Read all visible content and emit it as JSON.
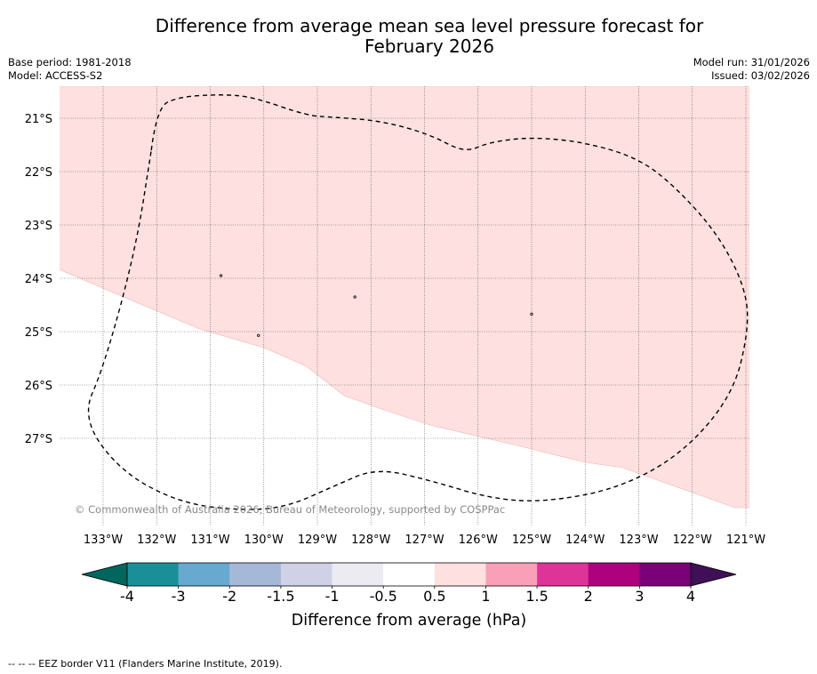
{
  "header": {
    "title_line1": "Difference from average mean sea level pressure forecast for",
    "title_line2": "February 2026",
    "base_period": "Base period: 1981-2018",
    "model": "Model: ACCESS-S2",
    "model_run": "Model run: 31/01/2026",
    "issued": "Issued: 03/02/2026"
  },
  "chart_data": {
    "type": "heatmap",
    "title": "Difference from average mean sea level pressure forecast for February 2026",
    "map_extent": {
      "lon_min": -133.9,
      "lon_max": -120.9,
      "lat_min": -28.3,
      "lat_max": -20.4
    },
    "x_ticks": [
      {
        "lon": -133,
        "label": "133°W"
      },
      {
        "lon": -132,
        "label": "132°W"
      },
      {
        "lon": -131,
        "label": "131°W"
      },
      {
        "lon": -130,
        "label": "130°W"
      },
      {
        "lon": -129,
        "label": "129°W"
      },
      {
        "lon": -128,
        "label": "128°W"
      },
      {
        "lon": -127,
        "label": "127°W"
      },
      {
        "lon": -126,
        "label": "126°W"
      },
      {
        "lon": -125,
        "label": "125°W"
      },
      {
        "lon": -124,
        "label": "124°W"
      },
      {
        "lon": -123,
        "label": "123°W"
      },
      {
        "lon": -122,
        "label": "122°W"
      },
      {
        "lon": -121,
        "label": "121°W"
      }
    ],
    "y_ticks": [
      {
        "lat": -21,
        "label": "21°S"
      },
      {
        "lat": -22,
        "label": "22°S"
      },
      {
        "lat": -23,
        "label": "23°S"
      },
      {
        "lat": -24,
        "label": "24°S"
      },
      {
        "lat": -25,
        "label": "25°S"
      },
      {
        "lat": -26,
        "label": "26°S"
      },
      {
        "lat": -27,
        "label": "27°S"
      }
    ],
    "filled_regions": [
      {
        "bin": "0.5 to 1 hPa",
        "color": "#fde0df",
        "boundary": [
          [
            -133.9,
            -20.4
          ],
          [
            -120.9,
            -20.4
          ],
          [
            -120.9,
            -28.3
          ],
          [
            -121.2,
            -28.3
          ],
          [
            -123.3,
            -27.55
          ],
          [
            -124.0,
            -27.45
          ],
          [
            -125.2,
            -27.15
          ],
          [
            -126.9,
            -26.75
          ],
          [
            -127.8,
            -26.45
          ],
          [
            -128.5,
            -26.2
          ],
          [
            -129.2,
            -25.65
          ],
          [
            -130.0,
            -25.3
          ],
          [
            -131.2,
            -24.95
          ],
          [
            -132.5,
            -24.4
          ],
          [
            -133.9,
            -23.8
          ]
        ]
      },
      {
        "bin": "-0.5 to 0.5 hPa",
        "color": "#ffffff",
        "boundary": "remainder of map (lower-left)"
      }
    ],
    "eez_border": {
      "style": "dashed",
      "points": [
        [
          -132.1,
          -21.6
        ],
        [
          -132.0,
          -20.8
        ],
        [
          -131.6,
          -20.6
        ],
        [
          -130.8,
          -20.55
        ],
        [
          -130.2,
          -20.6
        ],
        [
          -129.2,
          -20.95
        ],
        [
          -128.7,
          -20.98
        ],
        [
          -127.8,
          -21.05
        ],
        [
          -126.9,
          -21.3
        ],
        [
          -126.25,
          -21.65
        ],
        [
          -125.8,
          -21.45
        ],
        [
          -125.0,
          -21.35
        ],
        [
          -124.0,
          -21.45
        ],
        [
          -123.0,
          -21.75
        ],
        [
          -122.3,
          -22.3
        ],
        [
          -121.5,
          -23.2
        ],
        [
          -121.0,
          -24.2
        ],
        [
          -120.95,
          -25.0
        ],
        [
          -121.25,
          -26.2
        ],
        [
          -122.2,
          -27.3
        ],
        [
          -123.4,
          -27.95
        ],
        [
          -124.8,
          -28.2
        ],
        [
          -125.8,
          -28.12
        ],
        [
          -126.85,
          -27.8
        ],
        [
          -127.9,
          -27.55
        ],
        [
          -128.7,
          -27.9
        ],
        [
          -129.6,
          -28.3
        ],
        [
          -130.5,
          -28.35
        ],
        [
          -131.6,
          -28.2
        ],
        [
          -132.7,
          -27.6
        ],
        [
          -133.4,
          -26.6
        ],
        [
          -133.0,
          -25.7
        ],
        [
          -132.4,
          -23.5
        ],
        [
          -132.1,
          -21.6
        ]
      ]
    },
    "islands": [
      [
        -130.8,
        -23.95
      ],
      [
        -128.3,
        -24.35
      ],
      [
        -130.1,
        -25.07
      ],
      [
        -125.0,
        -24.67
      ]
    ],
    "colorbar": {
      "label": "Difference from average (hPa)",
      "extend": "both",
      "min_arrow_color": "#01665e",
      "max_arrow_color": "#3f0f57",
      "ticks": [
        "-4",
        "-3",
        "-2",
        "-1.5",
        "-1",
        "-0.5",
        "0.5",
        "1",
        "1.5",
        "2",
        "3",
        "4"
      ],
      "bins": [
        {
          "from": "-4",
          "to": "-3",
          "color": "#1b8f97"
        },
        {
          "from": "-3",
          "to": "-2",
          "color": "#67a9cf"
        },
        {
          "from": "-2",
          "to": "-1.5",
          "color": "#a6b8d8"
        },
        {
          "from": "-1.5",
          "to": "-1",
          "color": "#d0d1e6"
        },
        {
          "from": "-1",
          "to": "-0.5",
          "color": "#ecebf1"
        },
        {
          "from": "-0.5",
          "to": "0.5",
          "color": "#ffffff"
        },
        {
          "from": "0.5",
          "to": "1",
          "color": "#fde0df"
        },
        {
          "from": "1",
          "to": "1.5",
          "color": "#f99fb8"
        },
        {
          "from": "1.5",
          "to": "2",
          "color": "#dd3497"
        },
        {
          "from": "2",
          "to": "3",
          "color": "#ae017e"
        },
        {
          "from": "3",
          "to": "4",
          "color": "#7a0177"
        }
      ]
    }
  },
  "copyright": "© Commonwealth of Australia 2026, Bureau of Meteorology, supported by COSPPac",
  "footnote": "-- -- -- EEZ border V11 (Flanders Marine Institute, 2019)."
}
